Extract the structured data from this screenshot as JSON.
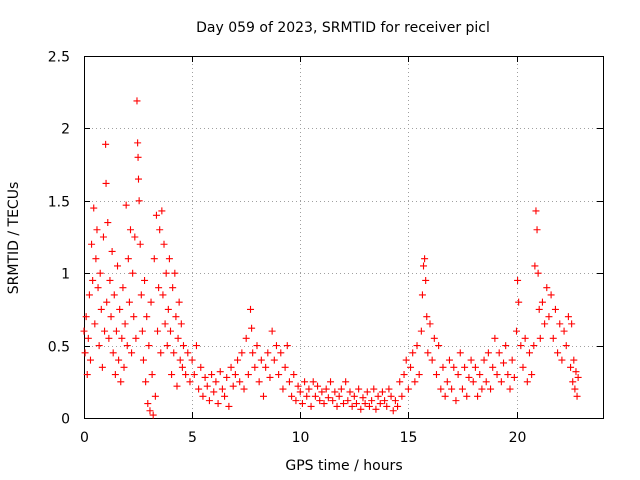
{
  "chart_data": {
    "type": "scatter",
    "title": "Day 059 of 2023, SRMTID for receiver picl",
    "xlabel": "GPS time / hours",
    "ylabel": "SRMTID / TECUs",
    "xlim": [
      0,
      24
    ],
    "ylim": [
      0,
      2.5
    ],
    "xticks": [
      0,
      5,
      10,
      15,
      20
    ],
    "xtick_labels": [
      "0",
      "5",
      "10",
      "15",
      "20"
    ],
    "yticks": [
      0,
      0.5,
      1,
      1.5,
      2,
      2.5
    ],
    "ytick_labels": [
      "0",
      "0.5",
      "1",
      "1.5",
      "2",
      "2.5"
    ],
    "grid": true,
    "marker": "+",
    "color": "#ff0000",
    "series": [
      {
        "name": "SRMTID",
        "points": [
          [
            0.0,
            0.6
          ],
          [
            0.05,
            0.45
          ],
          [
            0.1,
            0.7
          ],
          [
            0.15,
            0.3
          ],
          [
            0.2,
            0.55
          ],
          [
            0.25,
            0.85
          ],
          [
            0.3,
            0.4
          ],
          [
            0.35,
            1.2
          ],
          [
            0.4,
            0.95
          ],
          [
            0.45,
            1.45
          ],
          [
            0.5,
            0.65
          ],
          [
            0.55,
            1.1
          ],
          [
            0.6,
            1.3
          ],
          [
            0.65,
            0.9
          ],
          [
            0.7,
            0.5
          ],
          [
            0.75,
            1.0
          ],
          [
            0.8,
            0.75
          ],
          [
            0.85,
            0.35
          ],
          [
            0.9,
            1.25
          ],
          [
            0.95,
            0.6
          ],
          [
            1.0,
            1.89
          ],
          [
            1.02,
            1.62
          ],
          [
            1.05,
            0.8
          ],
          [
            1.1,
            1.35
          ],
          [
            1.15,
            0.55
          ],
          [
            1.2,
            0.95
          ],
          [
            1.25,
            0.7
          ],
          [
            1.3,
            1.15
          ],
          [
            1.35,
            0.45
          ],
          [
            1.4,
            0.85
          ],
          [
            1.45,
            0.3
          ],
          [
            1.5,
            0.6
          ],
          [
            1.55,
            1.05
          ],
          [
            1.6,
            0.4
          ],
          [
            1.65,
            0.75
          ],
          [
            1.7,
            0.25
          ],
          [
            1.75,
            0.55
          ],
          [
            1.8,
            0.9
          ],
          [
            1.85,
            0.35
          ],
          [
            1.9,
            0.65
          ],
          [
            1.95,
            1.47
          ],
          [
            2.0,
            0.5
          ],
          [
            2.05,
            1.1
          ],
          [
            2.1,
            0.8
          ],
          [
            2.15,
            1.3
          ],
          [
            2.2,
            0.45
          ],
          [
            2.25,
            1.0
          ],
          [
            2.3,
            0.7
          ],
          [
            2.35,
            1.25
          ],
          [
            2.4,
            0.55
          ],
          [
            2.45,
            2.19
          ],
          [
            2.48,
            1.9
          ],
          [
            2.5,
            1.8
          ],
          [
            2.52,
            1.65
          ],
          [
            2.55,
            1.5
          ],
          [
            2.6,
            1.2
          ],
          [
            2.65,
            0.85
          ],
          [
            2.7,
            0.6
          ],
          [
            2.75,
            0.4
          ],
          [
            2.8,
            0.95
          ],
          [
            2.85,
            0.25
          ],
          [
            2.9,
            0.7
          ],
          [
            2.95,
            0.1
          ],
          [
            3.0,
            0.5
          ],
          [
            3.05,
            0.05
          ],
          [
            3.1,
            0.8
          ],
          [
            3.15,
            0.3
          ],
          [
            3.2,
            0.02
          ],
          [
            3.25,
            1.1
          ],
          [
            3.3,
            0.15
          ],
          [
            3.35,
            1.4
          ],
          [
            3.4,
            0.6
          ],
          [
            3.45,
            0.9
          ],
          [
            3.5,
            1.3
          ],
          [
            3.55,
            0.45
          ],
          [
            3.6,
            1.43
          ],
          [
            3.65,
            0.85
          ],
          [
            3.7,
            1.2
          ],
          [
            3.75,
            0.65
          ],
          [
            3.8,
            1.0
          ],
          [
            3.85,
            0.5
          ],
          [
            3.9,
            0.75
          ],
          [
            3.95,
            1.1
          ],
          [
            4.0,
            0.6
          ],
          [
            4.05,
            0.3
          ],
          [
            4.1,
            0.9
          ],
          [
            4.15,
            0.45
          ],
          [
            4.2,
            1.0
          ],
          [
            4.25,
            0.7
          ],
          [
            4.3,
            0.22
          ],
          [
            4.35,
            0.55
          ],
          [
            4.4,
            0.8
          ],
          [
            4.45,
            0.4
          ],
          [
            4.5,
            0.65
          ],
          [
            4.55,
            0.35
          ],
          [
            4.6,
            0.5
          ],
          [
            4.7,
            0.3
          ],
          [
            4.8,
            0.45
          ],
          [
            4.9,
            0.25
          ],
          [
            5.0,
            0.4
          ],
          [
            5.1,
            0.3
          ],
          [
            5.2,
            0.5
          ],
          [
            5.3,
            0.2
          ],
          [
            5.4,
            0.35
          ],
          [
            5.5,
            0.15
          ],
          [
            5.6,
            0.28
          ],
          [
            5.7,
            0.22
          ],
          [
            5.8,
            0.12
          ],
          [
            5.9,
            0.3
          ],
          [
            6.0,
            0.18
          ],
          [
            6.1,
            0.25
          ],
          [
            6.2,
            0.1
          ],
          [
            6.3,
            0.32
          ],
          [
            6.4,
            0.2
          ],
          [
            6.5,
            0.15
          ],
          [
            6.6,
            0.28
          ],
          [
            6.7,
            0.08
          ],
          [
            6.8,
            0.35
          ],
          [
            6.9,
            0.22
          ],
          [
            7.0,
            0.3
          ],
          [
            7.1,
            0.4
          ],
          [
            7.2,
            0.25
          ],
          [
            7.3,
            0.45
          ],
          [
            7.4,
            0.2
          ],
          [
            7.5,
            0.55
          ],
          [
            7.6,
            0.3
          ],
          [
            7.7,
            0.75
          ],
          [
            7.75,
            0.62
          ],
          [
            7.8,
            0.45
          ],
          [
            7.9,
            0.35
          ],
          [
            8.0,
            0.5
          ],
          [
            8.1,
            0.25
          ],
          [
            8.2,
            0.4
          ],
          [
            8.3,
            0.15
          ],
          [
            8.4,
            0.35
          ],
          [
            8.5,
            0.45
          ],
          [
            8.6,
            0.28
          ],
          [
            8.7,
            0.6
          ],
          [
            8.8,
            0.4
          ],
          [
            8.9,
            0.5
          ],
          [
            9.0,
            0.3
          ],
          [
            9.1,
            0.45
          ],
          [
            9.2,
            0.2
          ],
          [
            9.3,
            0.35
          ],
          [
            9.4,
            0.5
          ],
          [
            9.5,
            0.25
          ],
          [
            9.6,
            0.15
          ],
          [
            9.7,
            0.3
          ],
          [
            9.8,
            0.12
          ],
          [
            9.9,
            0.22
          ],
          [
            10.0,
            0.18
          ],
          [
            10.1,
            0.1
          ],
          [
            10.2,
            0.25
          ],
          [
            10.3,
            0.15
          ],
          [
            10.4,
            0.2
          ],
          [
            10.5,
            0.08
          ],
          [
            10.6,
            0.25
          ],
          [
            10.7,
            0.15
          ],
          [
            10.8,
            0.22
          ],
          [
            10.9,
            0.12
          ],
          [
            11.0,
            0.18
          ],
          [
            11.1,
            0.1
          ],
          [
            11.2,
            0.2
          ],
          [
            11.3,
            0.14
          ],
          [
            11.4,
            0.25
          ],
          [
            11.5,
            0.12
          ],
          [
            11.6,
            0.18
          ],
          [
            11.7,
            0.08
          ],
          [
            11.8,
            0.15
          ],
          [
            11.9,
            0.2
          ],
          [
            12.0,
            0.1
          ],
          [
            12.1,
            0.25
          ],
          [
            12.2,
            0.12
          ],
          [
            12.3,
            0.18
          ],
          [
            12.4,
            0.08
          ],
          [
            12.5,
            0.15
          ],
          [
            12.6,
            0.1
          ],
          [
            12.7,
            0.2
          ],
          [
            12.8,
            0.06
          ],
          [
            12.9,
            0.14
          ],
          [
            13.0,
            0.1
          ],
          [
            13.1,
            0.18
          ],
          [
            13.2,
            0.08
          ],
          [
            13.3,
            0.12
          ],
          [
            13.4,
            0.2
          ],
          [
            13.5,
            0.06
          ],
          [
            13.6,
            0.15
          ],
          [
            13.7,
            0.1
          ],
          [
            13.8,
            0.18
          ],
          [
            13.9,
            0.12
          ],
          [
            14.0,
            0.08
          ],
          [
            14.1,
            0.2
          ],
          [
            14.2,
            0.15
          ],
          [
            14.3,
            0.05
          ],
          [
            14.4,
            0.12
          ],
          [
            14.5,
            0.08
          ],
          [
            14.6,
            0.25
          ],
          [
            14.7,
            0.15
          ],
          [
            14.8,
            0.3
          ],
          [
            14.9,
            0.4
          ],
          [
            15.0,
            0.2
          ],
          [
            15.1,
            0.35
          ],
          [
            15.2,
            0.45
          ],
          [
            15.3,
            0.25
          ],
          [
            15.4,
            0.5
          ],
          [
            15.5,
            0.3
          ],
          [
            15.6,
            0.6
          ],
          [
            15.65,
            0.85
          ],
          [
            15.7,
            1.05
          ],
          [
            15.75,
            1.1
          ],
          [
            15.8,
            0.95
          ],
          [
            15.85,
            0.7
          ],
          [
            15.9,
            0.45
          ],
          [
            16.0,
            0.65
          ],
          [
            16.1,
            0.4
          ],
          [
            16.2,
            0.55
          ],
          [
            16.3,
            0.3
          ],
          [
            16.4,
            0.5
          ],
          [
            16.5,
            0.2
          ],
          [
            16.6,
            0.35
          ],
          [
            16.7,
            0.15
          ],
          [
            16.8,
            0.25
          ],
          [
            16.9,
            0.4
          ],
          [
            17.0,
            0.2
          ],
          [
            17.1,
            0.35
          ],
          [
            17.2,
            0.12
          ],
          [
            17.3,
            0.3
          ],
          [
            17.4,
            0.45
          ],
          [
            17.5,
            0.2
          ],
          [
            17.6,
            0.35
          ],
          [
            17.7,
            0.15
          ],
          [
            17.8,
            0.28
          ],
          [
            17.9,
            0.4
          ],
          [
            18.0,
            0.25
          ],
          [
            18.1,
            0.35
          ],
          [
            18.2,
            0.15
          ],
          [
            18.3,
            0.3
          ],
          [
            18.4,
            0.2
          ],
          [
            18.5,
            0.4
          ],
          [
            18.6,
            0.25
          ],
          [
            18.7,
            0.45
          ],
          [
            18.8,
            0.2
          ],
          [
            18.9,
            0.35
          ],
          [
            19.0,
            0.55
          ],
          [
            19.1,
            0.3
          ],
          [
            19.2,
            0.45
          ],
          [
            19.3,
            0.25
          ],
          [
            19.4,
            0.38
          ],
          [
            19.5,
            0.5
          ],
          [
            19.6,
            0.3
          ],
          [
            19.7,
            0.2
          ],
          [
            19.8,
            0.4
          ],
          [
            19.9,
            0.28
          ],
          [
            20.0,
            0.6
          ],
          [
            20.05,
            0.95
          ],
          [
            20.1,
            0.8
          ],
          [
            20.2,
            0.5
          ],
          [
            20.3,
            0.35
          ],
          [
            20.4,
            0.55
          ],
          [
            20.5,
            0.25
          ],
          [
            20.6,
            0.45
          ],
          [
            20.7,
            0.3
          ],
          [
            20.8,
            0.5
          ],
          [
            20.85,
            1.05
          ],
          [
            20.9,
            1.43
          ],
          [
            20.95,
            1.3
          ],
          [
            21.0,
            1.0
          ],
          [
            21.05,
            0.75
          ],
          [
            21.1,
            0.55
          ],
          [
            21.2,
            0.8
          ],
          [
            21.3,
            0.65
          ],
          [
            21.4,
            0.9
          ],
          [
            21.5,
            0.7
          ],
          [
            21.6,
            0.85
          ],
          [
            21.7,
            0.55
          ],
          [
            21.8,
            0.75
          ],
          [
            21.9,
            0.45
          ],
          [
            22.0,
            0.65
          ],
          [
            22.1,
            0.4
          ],
          [
            22.2,
            0.6
          ],
          [
            22.3,
            0.5
          ],
          [
            22.4,
            0.7
          ],
          [
            22.5,
            0.35
          ],
          [
            22.55,
            0.65
          ],
          [
            22.6,
            0.25
          ],
          [
            22.65,
            0.4
          ],
          [
            22.7,
            0.2
          ],
          [
            22.75,
            0.32
          ],
          [
            22.8,
            0.15
          ],
          [
            22.85,
            0.28
          ]
        ]
      }
    ]
  }
}
